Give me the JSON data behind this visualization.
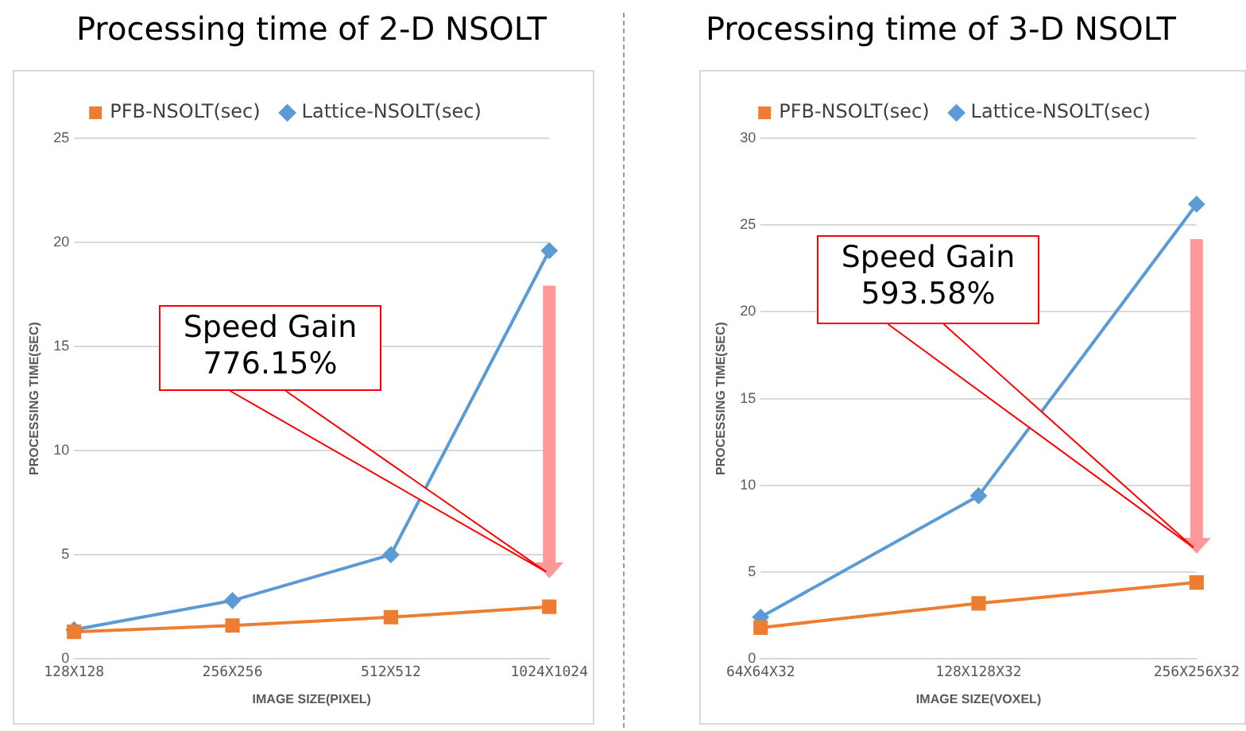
{
  "chart_data": [
    {
      "type": "line",
      "title": "Processing time of 2-D NSOLT",
      "xlabel": "IMAGE SIZE(PIXEL)",
      "ylabel": "PROCESSING TIME(SEC)",
      "categories": [
        "128X128",
        "256X256",
        "512X512",
        "1024X1024"
      ],
      "series": [
        {
          "name": "Lattice-NSOLT(sec)",
          "color": "#5b9bd5",
          "marker": "diamond",
          "values": [
            1.4,
            2.8,
            5.0,
            19.6
          ]
        },
        {
          "name": "PFB-NSOLT(sec)",
          "color": "#ed7d31",
          "marker": "square",
          "values": [
            1.3,
            1.6,
            2.0,
            2.5
          ]
        }
      ],
      "ylim": [
        0,
        25
      ],
      "yticks": [
        0,
        5,
        10,
        15,
        20,
        25
      ],
      "grid": "y",
      "legend": "top",
      "annotations": [
        "Speed Gain 776.15%"
      ]
    },
    {
      "type": "line",
      "title": "Processing time of 3-D NSOLT",
      "xlabel": "IMAGE SIZE(VOXEL)",
      "ylabel": "PROCESSING TIME(SEC)",
      "categories": [
        "64X64X32",
        "128X128X32",
        "256X256X32"
      ],
      "series": [
        {
          "name": "Lattice-NSOLT(sec)",
          "color": "#5b9bd5",
          "marker": "diamond",
          "values": [
            2.4,
            9.4,
            26.2
          ]
        },
        {
          "name": "PFB-NSOLT(sec)",
          "color": "#ed7d31",
          "marker": "square",
          "values": [
            1.8,
            3.2,
            4.4
          ]
        }
      ],
      "ylim": [
        0,
        30
      ],
      "yticks": [
        0,
        5,
        10,
        15,
        20,
        25,
        30
      ],
      "grid": "y",
      "legend": "top",
      "annotations": [
        "Speed Gain 593.58%"
      ]
    }
  ]
}
